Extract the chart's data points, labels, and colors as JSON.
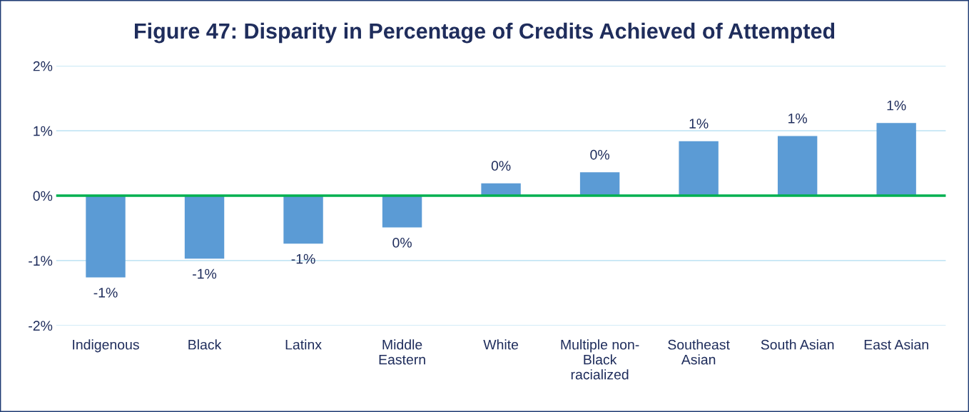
{
  "chart_data": {
    "type": "bar",
    "title": "Figure 47: Disparity in Percentage of Credits Achieved of Attempted",
    "categories": [
      "Indigenous",
      "Black",
      "Latinx",
      "Middle\nEastern",
      "White",
      "Multiple non-\nBlack\nracialized",
      "Southeast\nAsian",
      "South Asian",
      "East Asian"
    ],
    "values": [
      -1.26,
      -0.97,
      -0.74,
      -0.49,
      0.19,
      0.36,
      0.84,
      0.92,
      1.12
    ],
    "value_labels": [
      "-1%",
      "-1%",
      "-1%",
      "0%",
      "0%",
      "0%",
      "1%",
      "1%",
      "1%"
    ],
    "color": "#5b9bd5",
    "ylim": [
      -2,
      2
    ],
    "yticks": [
      {
        "value": -2,
        "label": "-2%"
      },
      {
        "value": -1,
        "label": "-1%"
      },
      {
        "value": 0,
        "label": "0%"
      },
      {
        "value": 1,
        "label": "1%"
      },
      {
        "value": 2,
        "label": "2%"
      }
    ],
    "grid": "y",
    "ref_lines": [
      {
        "axis": "y",
        "value": 0,
        "label": null,
        "color": "#00b050"
      }
    ]
  }
}
